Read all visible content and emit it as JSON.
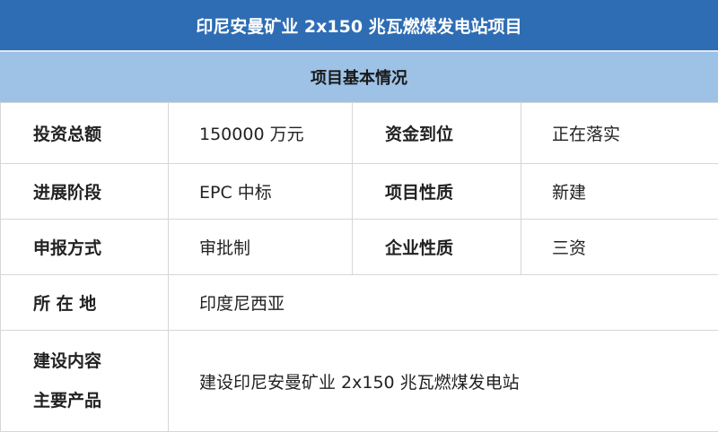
{
  "title": "印尼安曼矿业 2x150 兆瓦燃煤发电站项目",
  "section": "项目基本情况",
  "rows": [
    {
      "l1": "投资总额",
      "v1": "150000 万元",
      "l2": "资金到位",
      "v2": "正在落实"
    },
    {
      "l1": "进展阶段",
      "v1": "EPC 中标",
      "l2": "项目性质",
      "v2": "新建"
    },
    {
      "l1": "申报方式",
      "v1": "审批制",
      "l2": "企业性质",
      "v2": "三资"
    }
  ],
  "location": {
    "label": "所 在 地",
    "value": "印度尼西亚"
  },
  "content": {
    "label1": "建设内容",
    "label2": "主要产品",
    "value": "建设印尼安曼矿业 2x150 兆瓦燃煤发电站"
  }
}
